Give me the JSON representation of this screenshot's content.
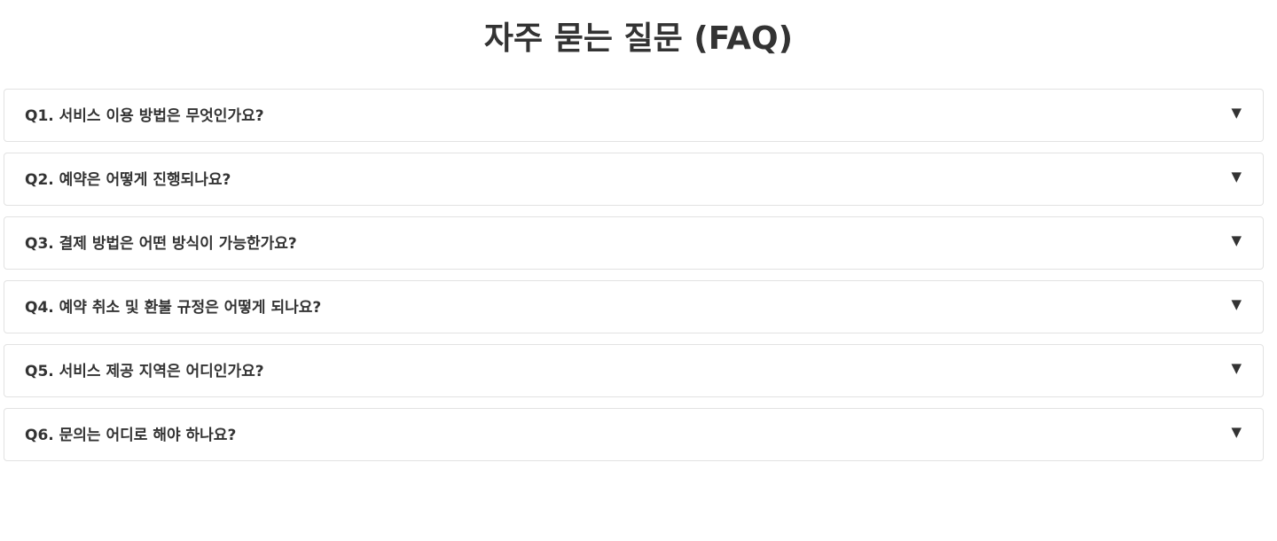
{
  "page": {
    "title": "자주 묻는 질문 (FAQ)"
  },
  "faq": {
    "toggle_icon": "▼",
    "items": [
      {
        "question": "Q1. 서비스 이용 방법은 무엇인가요?",
        "expanded": false
      },
      {
        "question": "Q2. 예약은 어떻게 진행되나요?",
        "expanded": false
      },
      {
        "question": "Q3. 결제 방법은 어떤 방식이 가능한가요?",
        "expanded": false
      },
      {
        "question": "Q4. 예약 취소 및 환불 규정은 어떻게 되나요?",
        "expanded": false
      },
      {
        "question": "Q5. 서비스 제공 지역은 어디인가요?",
        "expanded": false
      },
      {
        "question": "Q6. 문의는 어디로 해야 하나요?",
        "expanded": false
      }
    ]
  },
  "colors": {
    "text": "#333333",
    "border": "#e2e2e2",
    "background": "#ffffff"
  }
}
